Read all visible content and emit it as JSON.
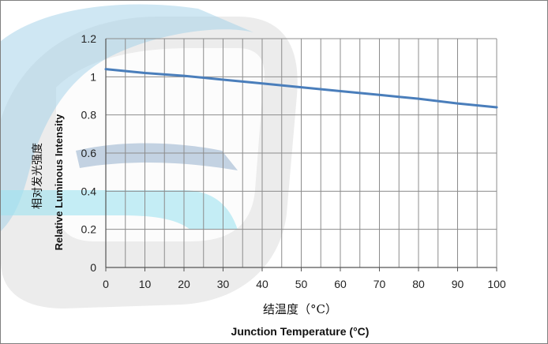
{
  "chart_data": {
    "type": "line",
    "title": "",
    "xlabel_cn": "结温度（°C）",
    "xlabel_en": "Junction Temperature (°C)",
    "ylabel_cn": "相对发光强度",
    "ylabel_en": "Relative Luminous Intensity",
    "xlim": [
      0,
      100
    ],
    "ylim": [
      0,
      1.2
    ],
    "x_ticks": [
      "0",
      "10",
      "20",
      "30",
      "40",
      "50",
      "60",
      "70",
      "80",
      "90",
      "100"
    ],
    "y_ticks": [
      "0",
      "0.2",
      "0.4",
      "0.6",
      "0.8",
      "1",
      "1.2"
    ],
    "x_tick_values": [
      0,
      10,
      20,
      30,
      40,
      50,
      60,
      70,
      80,
      90,
      100
    ],
    "y_tick_values": [
      0,
      0.2,
      0.4,
      0.6,
      0.8,
      1.0,
      1.2
    ],
    "x_minor_step": 5,
    "grid": true,
    "legend": "none",
    "series": [
      {
        "color": "#4a7ebb",
        "x": [
          0,
          10,
          20,
          30,
          40,
          50,
          60,
          70,
          80,
          90,
          100
        ],
        "y": [
          1.04,
          1.02,
          1.005,
          0.985,
          0.965,
          0.945,
          0.925,
          0.905,
          0.885,
          0.86,
          0.84
        ]
      }
    ]
  }
}
